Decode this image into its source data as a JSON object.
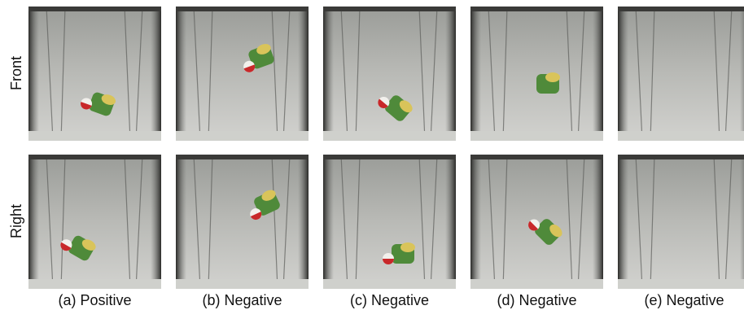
{
  "row_labels": [
    "Front",
    "Right"
  ],
  "captions": [
    "(a) Positive",
    "(b) Negative",
    "(c) Negative",
    "(d) Negative",
    "(e) Negative"
  ]
}
